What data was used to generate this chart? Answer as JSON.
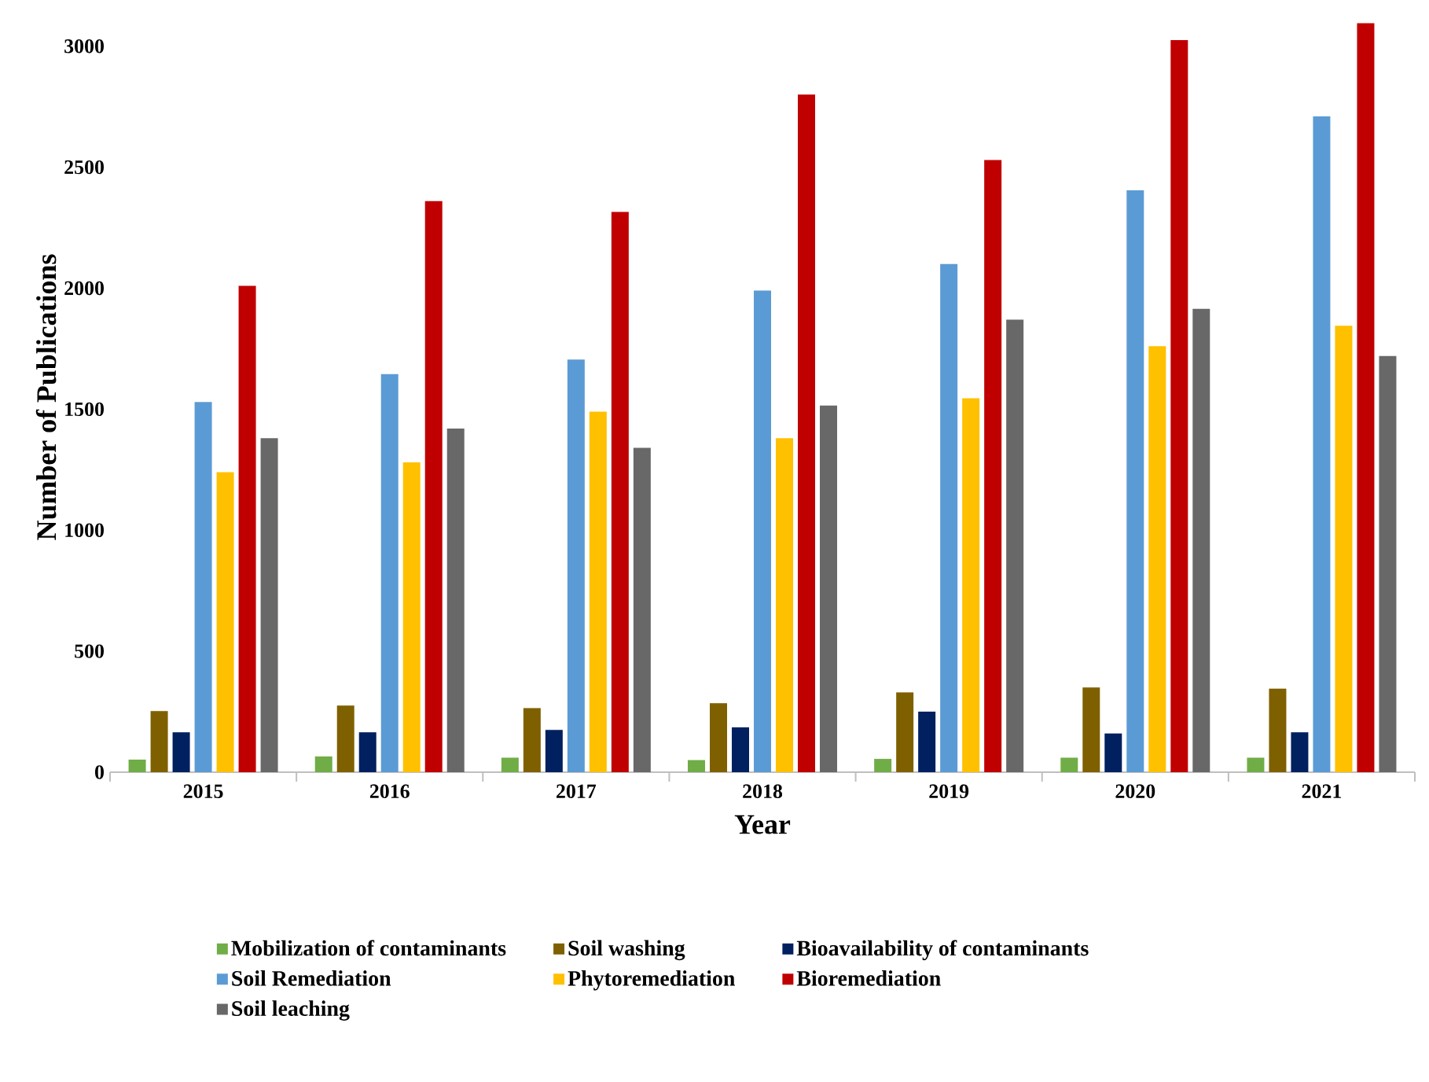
{
  "chart_data": {
    "type": "bar",
    "xlabel": "Year",
    "ylabel": "Number of Publications",
    "categories": [
      "2015",
      "2016",
      "2017",
      "2018",
      "2019",
      "2020",
      "2021"
    ],
    "ylim": [
      0,
      3100
    ],
    "yticks": [
      0,
      500,
      1000,
      1500,
      2000,
      2500,
      3000
    ],
    "legend": "bottom",
    "series": [
      {
        "name": "Mobilization of contaminants",
        "color": "#70ad47",
        "values": [
          52,
          65,
          60,
          50,
          55,
          60,
          60
        ]
      },
      {
        "name": "Soil washing",
        "color": "#7f6000",
        "values": [
          253,
          275,
          265,
          285,
          330,
          350,
          345
        ]
      },
      {
        "name": "Bioavailability of contaminants",
        "color": "#002060",
        "values": [
          165,
          165,
          175,
          185,
          250,
          160,
          165
        ]
      },
      {
        "name": "Soil Remediation",
        "color": "#5b9bd5",
        "values": [
          1530,
          1645,
          1705,
          1990,
          2100,
          2405,
          2710
        ]
      },
      {
        "name": "Phytoremediation",
        "color": "#ffc000",
        "values": [
          1240,
          1280,
          1490,
          1380,
          1545,
          1760,
          1845
        ]
      },
      {
        "name": "Bioremediation",
        "color": "#c00000",
        "values": [
          2010,
          2360,
          2315,
          2800,
          2530,
          3025,
          3095
        ]
      },
      {
        "name": "Soil leaching",
        "color": "#686868",
        "values": [
          1380,
          1420,
          1340,
          1515,
          1870,
          1915,
          1720
        ]
      }
    ]
  }
}
